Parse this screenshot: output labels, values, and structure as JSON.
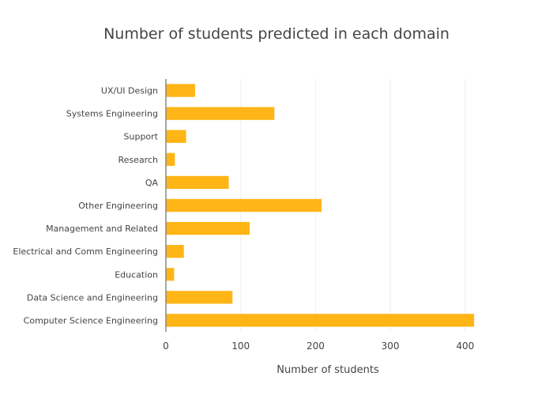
{
  "chart_data": {
    "type": "bar",
    "orientation": "horizontal",
    "title": "Number of students predicted in each domain",
    "xlabel": "Number of students",
    "ylabel": "",
    "categories": [
      "Computer Science Engineering",
      "Data Science and Engineering",
      "Education",
      "Electrical and Comm Engineering",
      "Management and Related",
      "Other Engineering",
      "QA",
      "Research",
      "Support",
      "Systems Engineering",
      "UX/UI Design"
    ],
    "values": [
      412,
      89,
      11,
      24,
      112,
      208,
      84,
      12,
      27,
      145,
      39
    ],
    "xlim": [
      0,
      430
    ],
    "xticks": [
      0,
      100,
      200,
      300,
      400
    ],
    "grid": "vertical",
    "bar_color": "#FFB515"
  }
}
